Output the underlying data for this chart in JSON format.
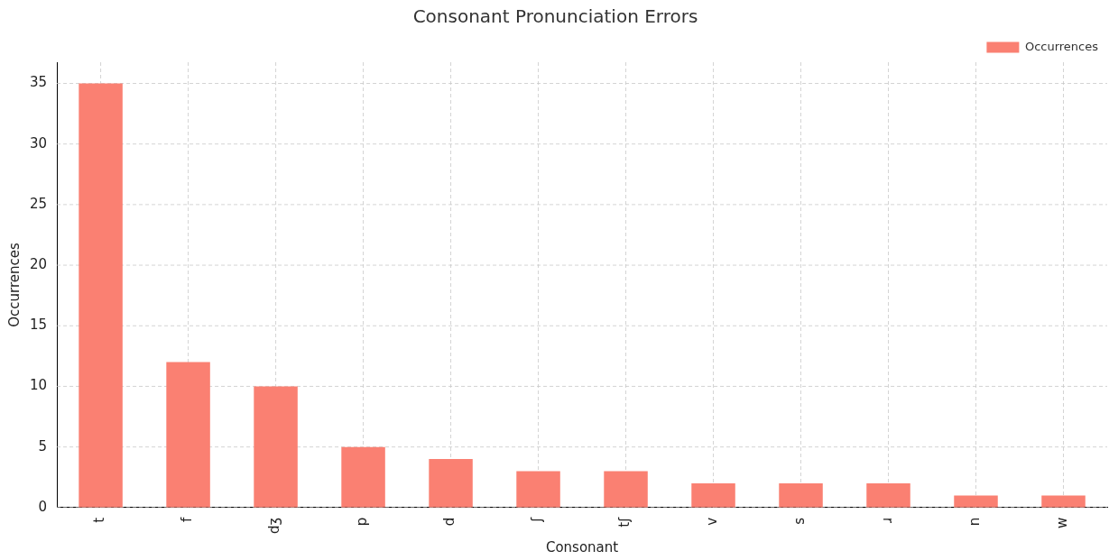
{
  "chart_data": {
    "type": "bar",
    "title": "Consonant Pronunciation Errors",
    "xlabel": "Consonant",
    "ylabel": "Occurrences",
    "categories": [
      "t",
      "f",
      "dʒ",
      "p",
      "d",
      "ʃ",
      "tʃ",
      "v",
      "s",
      "ɹ",
      "n",
      "w"
    ],
    "series": [
      {
        "name": "Occurrences",
        "color": "#fa8072",
        "values": [
          35,
          12,
          10,
          5,
          4,
          3,
          3,
          2,
          2,
          2,
          1,
          1
        ]
      }
    ],
    "ylim": [
      0,
      36.75
    ],
    "yticks": [
      0,
      5,
      10,
      15,
      20,
      25,
      30,
      35
    ],
    "grid": true,
    "legend": "top right"
  }
}
